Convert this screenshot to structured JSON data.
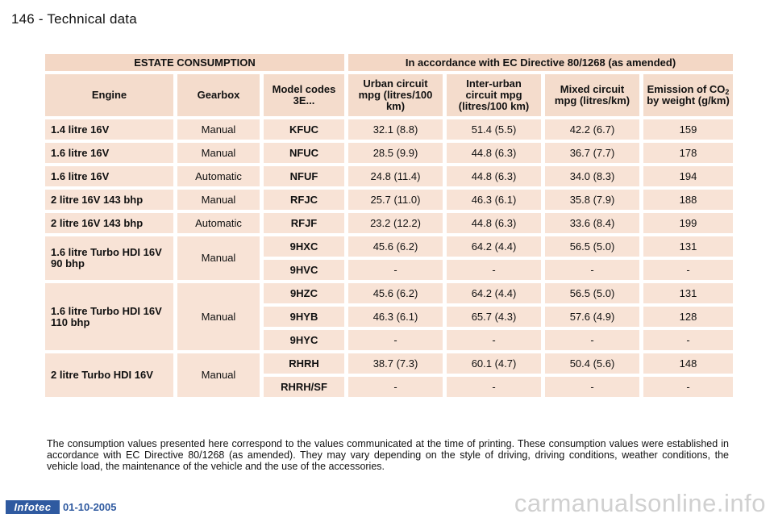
{
  "page": {
    "header": "146 - Technical data",
    "footnote": "The consumption values presented here correspond to the values communicated at the time of printing. These consumption values were established in accordance with EC Directive 80/1268 (as amended). They may vary depending on the style of driving, driving conditions, weather conditions, the vehicle load, the maintenance of the vehicle and the use of the accessories.",
    "footer_badge": "Infotec",
    "footer_date": "01-10-2005",
    "watermark": "carmanualsonline.info"
  },
  "table": {
    "band_left": "ESTATE CONSUMPTION",
    "band_right": "In accordance with EC Directive 80/1268 (as amended)",
    "headers": {
      "engine": "Engine",
      "gearbox": "Gearbox",
      "model_codes": "Model codes 3E...",
      "urban": "Urban circuit mpg (litres/100 km)",
      "interurban": "Inter-urban circuit mpg (litres/100 km)",
      "mixed": "Mixed circuit mpg (litres/km)",
      "emission_pre": "Emission of CO",
      "emission_sub": "2",
      "emission_post": " by weight (g/km)"
    },
    "rows": [
      {
        "engine": "1.4 litre 16V",
        "gearbox": "Manual",
        "code": "KFUC",
        "urban": "32.1 (8.8)",
        "interurban": "51.4 (5.5)",
        "mixed": "42.2 (6.7)",
        "co2": "159"
      },
      {
        "engine": "1.6 litre 16V",
        "gearbox": "Manual",
        "code": "NFUC",
        "urban": "28.5 (9.9)",
        "interurban": "44.8 (6.3)",
        "mixed": "36.7 (7.7)",
        "co2": "178"
      },
      {
        "engine": "1.6 litre 16V",
        "gearbox": "Automatic",
        "code": "NFUF",
        "urban": "24.8 (11.4)",
        "interurban": "44.8 (6.3)",
        "mixed": "34.0 (8.3)",
        "co2": "194"
      },
      {
        "engine": "2 litre 16V 143 bhp",
        "gearbox": "Manual",
        "code": "RFJC",
        "urban": "25.7 (11.0)",
        "interurban": "46.3 (6.1)",
        "mixed": "35.8 (7.9)",
        "co2": "188"
      },
      {
        "engine": "2 litre 16V 143 bhp",
        "gearbox": "Automatic",
        "code": "RFJF",
        "urban": "23.2 (12.2)",
        "interurban": "44.8 (6.3)",
        "mixed": "33.6 (8.4)",
        "co2": "199"
      }
    ],
    "groups": [
      {
        "engine": "1.6 litre Turbo HDI 16V 90 bhp",
        "gearbox": "Manual",
        "subrows": [
          {
            "code": "9HXC",
            "urban": "45.6 (6.2)",
            "interurban": "64.2 (4.4)",
            "mixed": "56.5 (5.0)",
            "co2": "131"
          },
          {
            "code": "9HVC",
            "urban": "-",
            "interurban": "-",
            "mixed": "-",
            "co2": "-"
          }
        ]
      },
      {
        "engine": "1.6 litre Turbo HDI 16V 110 bhp",
        "gearbox": "Manual",
        "subrows": [
          {
            "code": "9HZC",
            "urban": "45.6 (6.2)",
            "interurban": "64.2 (4.4)",
            "mixed": "56.5 (5.0)",
            "co2": "131"
          },
          {
            "code": "9HYB",
            "urban": "46.3 (6.1)",
            "interurban": "65.7 (4.3)",
            "mixed": "57.6 (4.9)",
            "co2": "128"
          },
          {
            "code": "9HYC",
            "urban": "-",
            "interurban": "-",
            "mixed": "-",
            "co2": "-"
          }
        ]
      },
      {
        "engine": "2 litre Turbo HDI 16V",
        "gearbox": "Manual",
        "subrows": [
          {
            "code": "RHRH",
            "urban": "38.7 (7.3)",
            "interurban": "60.1 (4.7)",
            "mixed": "50.4 (5.6)",
            "co2": "148"
          },
          {
            "code": "RHRH/SF",
            "urban": "-",
            "interurban": "-",
            "mixed": "-",
            "co2": "-"
          }
        ]
      }
    ]
  }
}
